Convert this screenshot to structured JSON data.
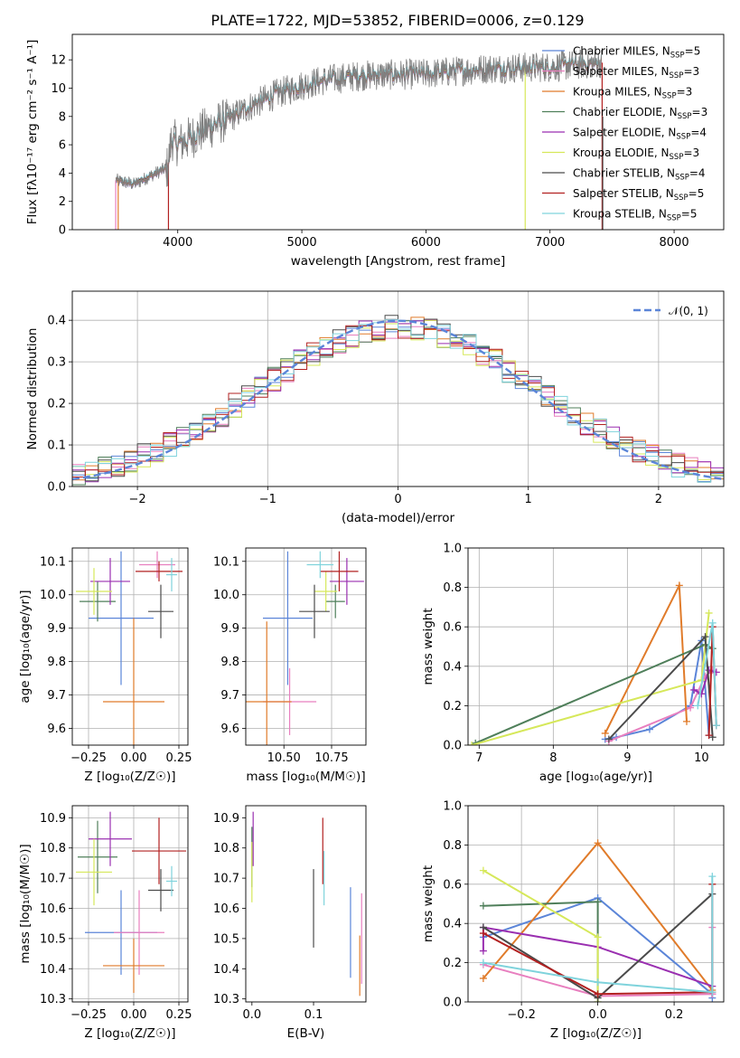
{
  "figure": {
    "title": "PLATE=1722, MJD=53852, FIBERID=0006, z=0.129"
  },
  "models": [
    {
      "name": "Chabrier MILES",
      "nssp": 5,
      "color": "#5b85d8"
    },
    {
      "name": "Salpeter MILES",
      "nssp": 3,
      "color": "#e87fbf"
    },
    {
      "name": "Kroupa MILES",
      "nssp": 3,
      "color": "#e07b2a"
    },
    {
      "name": "Chabrier ELODIE",
      "nssp": 3,
      "color": "#4f7f5a"
    },
    {
      "name": "Salpeter ELODIE",
      "nssp": 4,
      "color": "#9a2fb0"
    },
    {
      "name": "Kroupa ELODIE",
      "nssp": 3,
      "color": "#d6e85a"
    },
    {
      "name": "Chabrier STELIB",
      "nssp": 4,
      "color": "#4b4b4b"
    },
    {
      "name": "Salpeter STELIB",
      "nssp": 5,
      "color": "#b22020"
    },
    {
      "name": "Kroupa STELIB",
      "nssp": 5,
      "color": "#7fd3dc"
    }
  ],
  "chart_data": [
    {
      "id": "spectrum",
      "type": "line",
      "xlabel": "wavelength [Angstrom, rest frame]",
      "ylabel": "Flux [fλ10⁻¹⁷ erg cm⁻² s⁻¹ A⁻¹]",
      "xlim": [
        3150,
        8400
      ],
      "ylim": [
        0,
        13.8
      ],
      "xticks": [
        4000,
        5000,
        6000,
        7000,
        8000
      ],
      "yticks": [
        0,
        2,
        4,
        6,
        8,
        10,
        12
      ],
      "continuum": [
        [
          3500,
          3.5
        ],
        [
          3650,
          3.2
        ],
        [
          3800,
          3.9
        ],
        [
          3920,
          4.4
        ],
        [
          3950,
          6.5
        ],
        [
          4000,
          6.0
        ],
        [
          4200,
          7.0
        ],
        [
          4400,
          7.8
        ],
        [
          4600,
          8.8
        ],
        [
          4800,
          9.6
        ],
        [
          5000,
          10.2
        ],
        [
          5200,
          10.6
        ],
        [
          5500,
          10.9
        ],
        [
          6000,
          11.0
        ],
        [
          6500,
          11.4
        ],
        [
          7000,
          11.5
        ],
        [
          7420,
          11.8
        ]
      ],
      "data_line": {
        "color": "#808080",
        "xrange": [
          3450,
          7420
        ]
      }
    },
    {
      "id": "residuals",
      "type": "histogram",
      "xlabel": "(data-model)/error",
      "ylabel": "Normed distribution",
      "xlim": [
        -2.5,
        2.5
      ],
      "ylim": [
        0,
        0.47
      ],
      "xticks": [
        -2,
        -1,
        0,
        1,
        2
      ],
      "yticks": [
        0,
        0.1,
        0.2,
        0.3,
        0.4
      ],
      "grid": true,
      "legend": {
        "label": "𝒩(0, 1)",
        "position": "top-right"
      },
      "reference_curve": {
        "name": "N(0,1)",
        "mean": 0,
        "sigma": 1,
        "color": "#5b85d8"
      },
      "bins": {
        "start": -2.5,
        "width": 0.1,
        "count": 50
      }
    },
    {
      "id": "age-vs-Z",
      "type": "scatter",
      "xlabel": "Z [log₁₀(Z/Z☉)]",
      "ylabel": "age  [log₁₀(age/yr)]",
      "xlim": [
        -0.34,
        0.3
      ],
      "ylim": [
        9.55,
        10.14
      ],
      "xticks": [
        -0.25,
        0,
        0.25
      ],
      "xticklabels": [
        "−0.25",
        "0.00",
        "0.25"
      ],
      "yticks": [
        9.6,
        9.7,
        9.8,
        9.9,
        10.0,
        10.1
      ],
      "grid": true,
      "points": [
        {
          "model": 0,
          "x": -0.07,
          "xerr": 0.18,
          "y": 9.93,
          "yerr": 0.2
        },
        {
          "model": 1,
          "x": 0.13,
          "xerr": 0.1,
          "y": 10.09,
          "yerr": 0.04
        },
        {
          "model": 2,
          "x": 0.0,
          "xerr": 0.17,
          "y": 9.68,
          "yerr": 0.25
        },
        {
          "model": 3,
          "x": -0.2,
          "xerr": 0.1,
          "y": 9.98,
          "yerr": 0.06
        },
        {
          "model": 4,
          "x": -0.13,
          "xerr": 0.11,
          "y": 10.04,
          "yerr": 0.07
        },
        {
          "model": 5,
          "x": -0.22,
          "xerr": 0.1,
          "y": 10.01,
          "yerr": 0.07
        },
        {
          "model": 6,
          "x": 0.15,
          "xerr": 0.07,
          "y": 9.95,
          "yerr": 0.08
        },
        {
          "model": 7,
          "x": 0.14,
          "xerr": 0.13,
          "y": 10.07,
          "yerr": 0.03
        },
        {
          "model": 8,
          "x": 0.21,
          "xerr": 0.03,
          "y": 10.06,
          "yerr": 0.05
        }
      ]
    },
    {
      "id": "age-vs-mass",
      "type": "scatter",
      "xlabel": "mass [log₁₀(M/M☉)]",
      "ylabel": "",
      "xlim": [
        10.3,
        10.93
      ],
      "ylim": [
        9.55,
        10.14
      ],
      "xticks": [
        10.5,
        10.75
      ],
      "xticklabels": [
        "10.50",
        "10.75"
      ],
      "yticks": [
        9.6,
        9.7,
        9.8,
        9.9,
        10.0,
        10.1
      ],
      "grid": true,
      "points": [
        {
          "model": 0,
          "x": 10.52,
          "xerr": 0.13,
          "y": 9.93,
          "yerr": 0.2
        },
        {
          "model": 1,
          "x": 10.53,
          "xerr": 0.14,
          "y": 9.68,
          "yerr": 0.1
        },
        {
          "model": 2,
          "x": 10.41,
          "xerr": 0.13,
          "y": 9.68,
          "yerr": 0.24
        },
        {
          "model": 3,
          "x": 10.77,
          "xerr": 0.05,
          "y": 9.98,
          "yerr": 0.05
        },
        {
          "model": 4,
          "x": 10.83,
          "xerr": 0.09,
          "y": 10.04,
          "yerr": 0.07
        },
        {
          "model": 5,
          "x": 10.72,
          "xerr": 0.06,
          "y": 10.01,
          "yerr": 0.06
        },
        {
          "model": 6,
          "x": 10.66,
          "xerr": 0.08,
          "y": 9.95,
          "yerr": 0.08
        },
        {
          "model": 7,
          "x": 10.79,
          "xerr": 0.1,
          "y": 10.07,
          "yerr": 0.06
        },
        {
          "model": 8,
          "x": 10.69,
          "xerr": 0.07,
          "y": 10.09,
          "yerr": 0.04
        }
      ]
    },
    {
      "id": "weight-vs-age",
      "type": "line",
      "xlabel": "age  [log₁₀(age/yr)]",
      "ylabel": "mass weight",
      "xlim": [
        6.85,
        10.3
      ],
      "ylim": [
        0,
        1.0
      ],
      "xticks": [
        7,
        8,
        9,
        10
      ],
      "yticks": [
        0,
        0.2,
        0.4,
        0.6,
        0.8,
        1.0
      ],
      "grid": true,
      "series": [
        {
          "model": 0,
          "points": [
            [
              8.7,
              0.03
            ],
            [
              8.85,
              0.04
            ],
            [
              9.3,
              0.08
            ],
            [
              9.85,
              0.2
            ],
            [
              10.0,
              0.53
            ],
            [
              10.1,
              0.05
            ]
          ]
        },
        {
          "model": 1,
          "points": [
            [
              8.75,
              0.02
            ],
            [
              9.85,
              0.19
            ],
            [
              10.05,
              0.35
            ],
            [
              10.15,
              0.38
            ]
          ]
        },
        {
          "model": 2,
          "points": [
            [
              8.7,
              0.06
            ],
            [
              9.7,
              0.81
            ],
            [
              9.8,
              0.12
            ]
          ]
        },
        {
          "model": 3,
          "points": [
            [
              6.95,
              0.01
            ],
            [
              10.05,
              0.51
            ],
            [
              10.15,
              0.49
            ]
          ]
        },
        {
          "model": 4,
          "points": [
            [
              9.9,
              0.28
            ],
            [
              10.0,
              0.26
            ],
            [
              10.1,
              0.38
            ],
            [
              10.2,
              0.37
            ]
          ]
        },
        {
          "model": 5,
          "points": [
            [
              6.9,
              0.0
            ],
            [
              10.0,
              0.33
            ],
            [
              10.1,
              0.67
            ]
          ]
        },
        {
          "model": 6,
          "points": [
            [
              8.75,
              0.03
            ],
            [
              10.05,
              0.55
            ],
            [
              10.15,
              0.04
            ]
          ]
        },
        {
          "model": 7,
          "points": [
            [
              10.1,
              0.05
            ],
            [
              10.15,
              0.6
            ],
            [
              10.2,
              0.1
            ]
          ]
        },
        {
          "model": 8,
          "points": [
            [
              9.95,
              0.2
            ],
            [
              10.15,
              0.62
            ],
            [
              10.2,
              0.1
            ]
          ]
        }
      ]
    },
    {
      "id": "mass-vs-Z",
      "type": "scatter",
      "xlabel": "Z [log₁₀(Z/Z☉)]",
      "ylabel": "mass [log₁₀(M/M☉)]",
      "xlim": [
        -0.34,
        0.3
      ],
      "ylim": [
        10.29,
        10.94
      ],
      "xticks": [
        -0.25,
        0,
        0.25
      ],
      "xticklabels": [
        "−0.25",
        "0.00",
        "0.25"
      ],
      "yticks": [
        10.3,
        10.4,
        10.5,
        10.6,
        10.7,
        10.8,
        10.9
      ],
      "grid": true,
      "points": [
        {
          "model": 0,
          "x": -0.07,
          "xerr": 0.2,
          "y": 10.52,
          "yerr": 0.14
        },
        {
          "model": 1,
          "x": 0.03,
          "xerr": 0.14,
          "y": 10.52,
          "yerr": 0.14
        },
        {
          "model": 2,
          "x": 0.0,
          "xerr": 0.17,
          "y": 10.41,
          "yerr": 0.09
        },
        {
          "model": 3,
          "x": -0.2,
          "xerr": 0.11,
          "y": 10.77,
          "yerr": 0.12
        },
        {
          "model": 4,
          "x": -0.13,
          "xerr": 0.12,
          "y": 10.83,
          "yerr": 0.09
        },
        {
          "model": 5,
          "x": -0.22,
          "xerr": 0.1,
          "y": 10.72,
          "yerr": 0.11
        },
        {
          "model": 6,
          "x": 0.15,
          "xerr": 0.07,
          "y": 10.66,
          "yerr": 0.07
        },
        {
          "model": 7,
          "x": 0.14,
          "xerr": 0.15,
          "y": 10.79,
          "yerr": 0.11
        },
        {
          "model": 8,
          "x": 0.21,
          "xerr": 0.03,
          "y": 10.69,
          "yerr": 0.05
        }
      ]
    },
    {
      "id": "mass-vs-EBV",
      "type": "scatter",
      "xlabel": "E(B-V)",
      "ylabel": "",
      "xlim": [
        -0.01,
        0.185
      ],
      "ylim": [
        10.29,
        10.94
      ],
      "xticks": [
        0.0,
        0.1
      ],
      "xticklabels": [
        "0.0",
        "0.1"
      ],
      "yticks": [
        10.3,
        10.4,
        10.5,
        10.6,
        10.7,
        10.8,
        10.9
      ],
      "grid": false,
      "points": [
        {
          "model": 0,
          "x": 0.16,
          "xerr": 0,
          "y": 10.52,
          "yerr": 0.15
        },
        {
          "model": 1,
          "x": 0.178,
          "xerr": 0,
          "y": 10.5,
          "yerr": 0.15
        },
        {
          "model": 2,
          "x": 0.175,
          "xerr": 0,
          "y": 10.41,
          "yerr": 0.1
        },
        {
          "model": 3,
          "x": 0.0,
          "xerr": 0,
          "y": 10.77,
          "yerr": 0.1
        },
        {
          "model": 4,
          "x": 0.002,
          "xerr": 0,
          "y": 10.83,
          "yerr": 0.09
        },
        {
          "model": 5,
          "x": 0.0,
          "xerr": 0,
          "y": 10.72,
          "yerr": 0.1
        },
        {
          "model": 6,
          "x": 0.1,
          "xerr": 0,
          "y": 10.6,
          "yerr": 0.13
        },
        {
          "model": 7,
          "x": 0.115,
          "xerr": 0,
          "y": 10.79,
          "yerr": 0.11
        },
        {
          "model": 8,
          "x": 0.117,
          "xerr": 0,
          "y": 10.7,
          "yerr": 0.09
        }
      ]
    },
    {
      "id": "weight-vs-Z",
      "type": "line",
      "xlabel": "Z [log₁₀(Z/Z☉)]",
      "ylabel": "mass weight",
      "xlim": [
        -0.34,
        0.33
      ],
      "ylim": [
        0,
        1.0
      ],
      "xticks": [
        -0.2,
        0,
        0.2
      ],
      "xticklabels": [
        "−0.2",
        "0.0",
        "0.2"
      ],
      "yticks": [
        0,
        0.2,
        0.4,
        0.6,
        0.8,
        1.0
      ],
      "grid": true,
      "series": [
        {
          "model": 0,
          "points": [
            [
              -0.3,
              0.33
            ],
            [
              0.0,
              0.53
            ],
            [
              0.3,
              0.04
            ],
            [
              0.3,
              0.02
            ]
          ]
        },
        {
          "model": 1,
          "points": [
            [
              -0.3,
              0.19
            ],
            [
              0.0,
              0.03
            ],
            [
              0.3,
              0.04
            ],
            [
              0.3,
              0.38
            ]
          ]
        },
        {
          "model": 2,
          "points": [
            [
              -0.3,
              0.12
            ],
            [
              0.0,
              0.81
            ],
            [
              0.3,
              0.06
            ]
          ]
        },
        {
          "model": 3,
          "points": [
            [
              -0.3,
              0.49
            ],
            [
              0.0,
              0.51
            ],
            [
              0.0,
              0.0
            ]
          ]
        },
        {
          "model": 4,
          "points": [
            [
              -0.3,
              0.26
            ],
            [
              -0.3,
              0.38
            ],
            [
              0.0,
              0.28
            ],
            [
              0.3,
              0.08
            ]
          ]
        },
        {
          "model": 5,
          "points": [
            [
              -0.3,
              0.67
            ],
            [
              0.0,
              0.33
            ],
            [
              0.0,
              0.0
            ]
          ]
        },
        {
          "model": 6,
          "points": [
            [
              -0.3,
              0.38
            ],
            [
              0.0,
              0.02
            ],
            [
              0.3,
              0.55
            ]
          ]
        },
        {
          "model": 7,
          "points": [
            [
              -0.3,
              0.35
            ],
            [
              0.0,
              0.04
            ],
            [
              0.3,
              0.05
            ],
            [
              0.3,
              0.6
            ]
          ]
        },
        {
          "model": 8,
          "points": [
            [
              -0.3,
              0.2
            ],
            [
              0.0,
              0.1
            ],
            [
              0.3,
              0.05
            ],
            [
              0.3,
              0.64
            ]
          ]
        }
      ]
    }
  ]
}
